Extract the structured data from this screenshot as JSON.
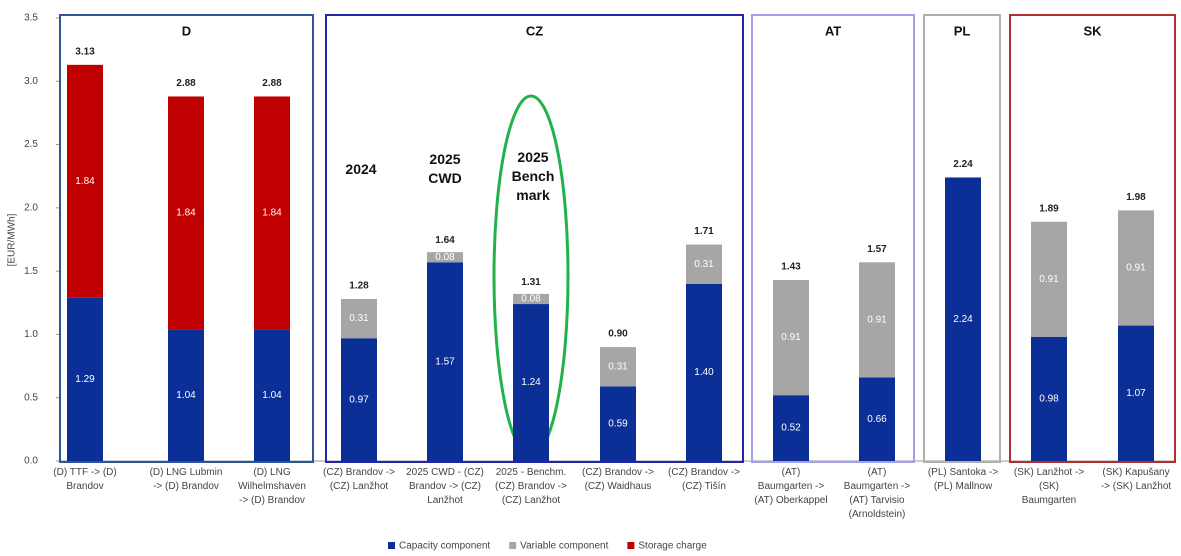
{
  "chart_data": {
    "type": "stacked_bar",
    "y_label": "[EUR/MWh]",
    "ylim": [
      0,
      3.5
    ],
    "yticks": [
      {
        "value": 0,
        "label": "0.0"
      },
      {
        "value": 0.5,
        "label": "0.5"
      },
      {
        "value": 1,
        "label": "1.0"
      },
      {
        "value": 1.5,
        "label": "1.5"
      },
      {
        "value": 2,
        "label": "2.0"
      },
      {
        "value": 2.5,
        "label": "2.5"
      },
      {
        "value": 3,
        "label": "3.0"
      },
      {
        "value": 3.5,
        "label": "3.5"
      }
    ],
    "categories": [
      [
        "(D) TTF -> (D)",
        "Brandov"
      ],
      [
        "(D) LNG Lubmin",
        "-> (D) Brandov"
      ],
      [
        "(D) LNG",
        "Wilhelmshaven",
        "-> (D) Brandov"
      ],
      [
        "(CZ) Brandov ->",
        "(CZ) Lanžhot"
      ],
      [
        "2025 CWD - (CZ)",
        "Brandov -> (CZ)",
        "Lanžhot"
      ],
      [
        "2025 - Benchm.",
        "(CZ) Brandov ->",
        "(CZ) Lanžhot"
      ],
      [
        "(CZ) Brandov ->",
        "(CZ) Waidhaus"
      ],
      [
        "(CZ) Brandov ->",
        "(CZ) Tišín"
      ],
      [
        "(AT)",
        "Baumgarten ->",
        "(AT) Oberkappel"
      ],
      [
        "(AT)",
        "Baumgarten ->",
        "(AT) Tarvisio",
        "(Arnoldstein)"
      ],
      [
        "(PL) Santoka ->",
        "(PL) Mallnow"
      ],
      [
        "(SK) Lanžhot ->",
        "(SK)",
        "Baumgarten"
      ],
      [
        "(SK) Kapušany",
        "-> (SK) Lanžhot"
      ]
    ],
    "series": [
      {
        "name": "Capacity component",
        "color": "#0b2f96",
        "values": [
          1.29,
          1.04,
          1.04,
          0.97,
          1.57,
          1.24,
          0.59,
          1.4,
          0.52,
          0.66,
          2.24,
          0.98,
          1.07
        ],
        "value_labels": [
          "1.29",
          "1.04",
          "1.04",
          "0.97",
          "1.57",
          "1.24",
          "0.59",
          "1.40",
          "0.52",
          "0.66",
          "2.24",
          "0.98",
          "1.07"
        ]
      },
      {
        "name": "Variable component",
        "color": "#a6a6a6",
        "values": [
          null,
          null,
          null,
          0.31,
          0.08,
          0.08,
          0.31,
          0.31,
          0.91,
          0.91,
          null,
          0.91,
          0.91
        ],
        "value_labels": [
          null,
          null,
          null,
          "0.31",
          "0.08",
          "0.08",
          "0.31",
          "0.31",
          "0.91",
          "0.91",
          null,
          "0.91",
          "0.91"
        ]
      },
      {
        "name": "Storage charge",
        "color": "#c00000",
        "values": [
          1.84,
          1.84,
          1.84,
          null,
          null,
          null,
          null,
          null,
          null,
          null,
          null,
          null,
          null
        ],
        "value_labels": [
          "1.84",
          "1.84",
          "1.84",
          null,
          null,
          null,
          null,
          null,
          null,
          null,
          null,
          null,
          null
        ]
      }
    ],
    "totals": [
      3.13,
      2.88,
      2.88,
      1.28,
      1.64,
      1.31,
      0.9,
      1.71,
      1.43,
      1.57,
      2.24,
      1.89,
      1.98
    ],
    "totals_labels": [
      "3.13",
      "2.88",
      "2.88",
      "1.28",
      "1.64",
      "1.31",
      "0.90",
      "1.71",
      "1.43",
      "1.57",
      "2.24",
      "1.89",
      "1.98"
    ],
    "groups": [
      {
        "name": "D",
        "color": "#2e5597"
      },
      {
        "name": "CZ",
        "color": "#2424a8"
      },
      {
        "name": "AT",
        "color": "#a0a0ea"
      },
      {
        "name": "PL",
        "color": "#b0b0b0"
      },
      {
        "name": "SK",
        "color": "#b03030"
      }
    ],
    "annotations": [
      [
        "2024"
      ],
      [
        "2025",
        "CWD"
      ],
      [
        "2025",
        "Bench",
        "mark"
      ]
    ]
  }
}
